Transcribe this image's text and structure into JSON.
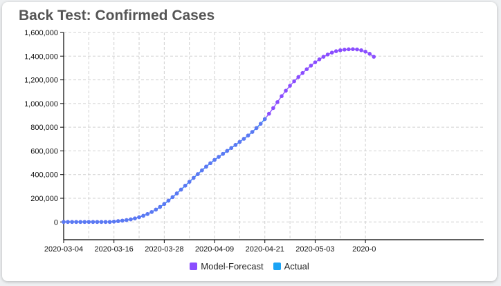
{
  "title": "Back Test: Confirmed Cases",
  "legend": [
    {
      "label": "Model-Forecast",
      "color": "#8a4dff"
    },
    {
      "label": "Actual",
      "color": "#1aa3f5"
    }
  ],
  "chart_data": {
    "type": "line",
    "title": "Back Test: Confirmed Cases",
    "xlabel": "",
    "ylabel": "",
    "x_start": "2020-03-04",
    "ylim": [
      -150000,
      1600000
    ],
    "yticks": [
      0,
      200000,
      400000,
      600000,
      800000,
      1000000,
      1200000,
      1400000,
      1600000
    ],
    "ytick_labels": [
      "0",
      "200,000",
      "400,000",
      "600,000",
      "800,000",
      "1,000,000",
      "1,200,000",
      "1,400,000",
      "1,600,000"
    ],
    "xtick_labels": [
      "2020-03-04",
      "2020-03-16",
      "2020-03-28",
      "2020-04-09",
      "2020-04-21",
      "2020-05-03",
      "2020-0"
    ],
    "grid": true,
    "legend_position": "bottom",
    "series": [
      {
        "name": "Model-Forecast",
        "color": "#8a4dff",
        "values": [
          0,
          0,
          0,
          0,
          0,
          0,
          0,
          0,
          0,
          0,
          0,
          0,
          3000,
          7000,
          11000,
          16000,
          22000,
          30000,
          40000,
          52000,
          67000,
          84000,
          104000,
          127000,
          152000,
          180000,
          210000,
          241000,
          273000,
          306000,
          339000,
          372000,
          404000,
          436000,
          467000,
          496000,
          524000,
          550000,
          575000,
          600000,
          625000,
          650000,
          676000,
          702000,
          730000,
          760000,
          793000,
          829000,
          869000,
          914000,
          962000,
          1012000,
          1062000,
          1108000,
          1150000,
          1188000,
          1224000,
          1258000,
          1290000,
          1320000,
          1348000,
          1373000,
          1395000,
          1414000,
          1430000,
          1442000,
          1450000,
          1455000,
          1458000,
          1459000,
          1457000,
          1450000,
          1438000,
          1420000,
          1395000
        ]
      },
      {
        "name": "Actual",
        "color": "#1aa3f5",
        "values": [
          0,
          0,
          0,
          0,
          0,
          0,
          0,
          0,
          0,
          0,
          0,
          0,
          3000,
          7000,
          11000,
          16000,
          22000,
          30000,
          40000,
          52000,
          67000,
          84000,
          104000,
          127000,
          152000,
          180000,
          210000,
          241000,
          273000,
          306000,
          339000,
          372000,
          404000,
          436000,
          467000,
          496000,
          524000,
          550000,
          575000,
          600000,
          625000,
          650000,
          676000,
          702000,
          730000,
          760000,
          793000,
          829000,
          869000
        ]
      }
    ]
  }
}
